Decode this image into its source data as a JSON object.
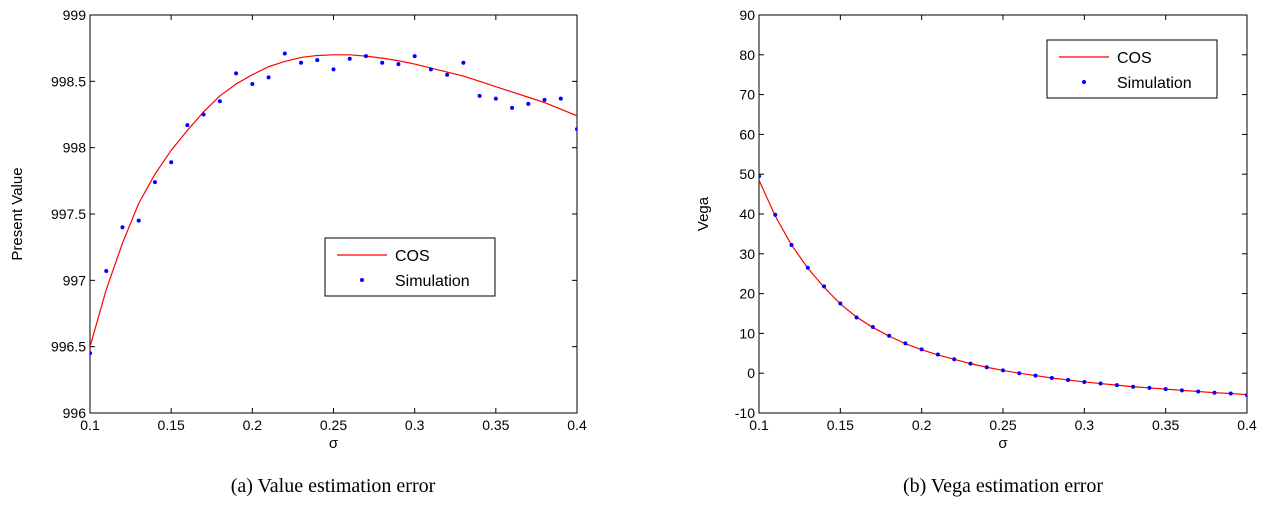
{
  "chart_data": [
    {
      "type": "line",
      "caption": "(a) Value estimation error",
      "xlabel": "σ",
      "ylabel": "Present Value",
      "xlim": [
        0.1,
        0.4
      ],
      "ylim": [
        996,
        999
      ],
      "xticks": [
        0.1,
        0.15,
        0.2,
        0.25,
        0.3,
        0.35,
        0.4
      ],
      "xtick_labels": [
        "0.1",
        "0.15",
        "0.2",
        "0.25",
        "0.3",
        "0.35",
        "0.4"
      ],
      "yticks": [
        996,
        996.5,
        997,
        997.5,
        998,
        998.5,
        999
      ],
      "ytick_labels": [
        "996",
        "996.5",
        "997",
        "997.5",
        "998",
        "998.5",
        "999"
      ],
      "grid": false,
      "legend_position": "center-right",
      "series": [
        {
          "name": "COS",
          "style": "line",
          "color": "#ff0000",
          "x": [
            0.1,
            0.11,
            0.12,
            0.13,
            0.14,
            0.15,
            0.16,
            0.17,
            0.18,
            0.19,
            0.2,
            0.21,
            0.22,
            0.23,
            0.24,
            0.25,
            0.26,
            0.27,
            0.28,
            0.29,
            0.3,
            0.31,
            0.32,
            0.33,
            0.34,
            0.35,
            0.36,
            0.37,
            0.38,
            0.39,
            0.4
          ],
          "y": [
            996.5,
            996.93,
            997.28,
            997.58,
            997.8,
            997.98,
            998.13,
            998.27,
            998.39,
            998.48,
            998.55,
            998.61,
            998.65,
            998.68,
            998.695,
            998.7,
            998.7,
            998.69,
            998.675,
            998.655,
            998.63,
            998.6,
            998.57,
            998.54,
            998.5,
            998.46,
            998.42,
            998.38,
            998.34,
            998.29,
            998.24
          ]
        },
        {
          "name": "Simulation",
          "style": "markers",
          "color": "#0000ff",
          "x": [
            0.1,
            0.11,
            0.12,
            0.13,
            0.14,
            0.15,
            0.16,
            0.17,
            0.18,
            0.19,
            0.2,
            0.21,
            0.22,
            0.23,
            0.24,
            0.25,
            0.26,
            0.27,
            0.28,
            0.29,
            0.3,
            0.31,
            0.32,
            0.33,
            0.34,
            0.35,
            0.36,
            0.37,
            0.38,
            0.39,
            0.4
          ],
          "y": [
            996.45,
            997.07,
            997.4,
            997.45,
            997.74,
            997.89,
            998.17,
            998.25,
            998.35,
            998.56,
            998.48,
            998.53,
            998.71,
            998.64,
            998.66,
            998.59,
            998.67,
            998.69,
            998.64,
            998.63,
            998.69,
            998.59,
            998.55,
            998.64,
            998.39,
            998.37,
            998.3,
            998.33,
            998.36,
            998.37,
            998.14
          ]
        }
      ]
    },
    {
      "type": "line",
      "caption": "(b) Vega estimation error",
      "xlabel": "σ",
      "ylabel": "Vega",
      "xlim": [
        0.1,
        0.4
      ],
      "ylim": [
        -10,
        90
      ],
      "xticks": [
        0.1,
        0.15,
        0.2,
        0.25,
        0.3,
        0.35,
        0.4
      ],
      "xtick_labels": [
        "0.1",
        "0.15",
        "0.2",
        "0.25",
        "0.3",
        "0.35",
        "0.4"
      ],
      "yticks": [
        -10,
        0,
        10,
        20,
        30,
        40,
        50,
        60,
        70,
        80,
        90
      ],
      "ytick_labels": [
        "-10",
        "0",
        "10",
        "20",
        "30",
        "40",
        "50",
        "60",
        "70",
        "80",
        "90"
      ],
      "grid": false,
      "legend_position": "top-right",
      "series": [
        {
          "name": "COS",
          "style": "line",
          "color": "#ff0000",
          "x": [
            0.1,
            0.11,
            0.12,
            0.13,
            0.14,
            0.15,
            0.16,
            0.17,
            0.18,
            0.19,
            0.2,
            0.21,
            0.22,
            0.23,
            0.24,
            0.25,
            0.26,
            0.27,
            0.28,
            0.29,
            0.3,
            0.31,
            0.32,
            0.33,
            0.34,
            0.35,
            0.36,
            0.37,
            0.38,
            0.39,
            0.4
          ],
          "y": [
            48.5,
            39.5,
            32.2,
            26.4,
            21.6,
            17.4,
            14.1,
            11.5,
            9.3,
            7.4,
            5.9,
            4.6,
            3.5,
            2.4,
            1.5,
            0.7,
            0.0,
            -0.6,
            -1.2,
            -1.7,
            -2.2,
            -2.6,
            -3.0,
            -3.4,
            -3.7,
            -4.0,
            -4.3,
            -4.6,
            -4.9,
            -5.1,
            -5.4
          ]
        },
        {
          "name": "Simulation",
          "style": "markers",
          "color": "#0000ff",
          "x": [
            0.1,
            0.11,
            0.12,
            0.13,
            0.14,
            0.15,
            0.16,
            0.17,
            0.18,
            0.19,
            0.2,
            0.21,
            0.22,
            0.23,
            0.24,
            0.25,
            0.26,
            0.27,
            0.28,
            0.29,
            0.3,
            0.31,
            0.32,
            0.33,
            0.34,
            0.35,
            0.36,
            0.37,
            0.38,
            0.39,
            0.4
          ],
          "y": [
            49.5,
            39.8,
            32.2,
            26.5,
            21.8,
            17.5,
            14.0,
            11.6,
            9.4,
            7.5,
            6.0,
            4.7,
            3.5,
            2.4,
            1.5,
            0.7,
            0.0,
            -0.6,
            -1.2,
            -1.7,
            -2.2,
            -2.6,
            -3.0,
            -3.4,
            -3.7,
            -4.0,
            -4.3,
            -4.6,
            -4.9,
            -5.1,
            -5.5
          ]
        }
      ]
    }
  ]
}
